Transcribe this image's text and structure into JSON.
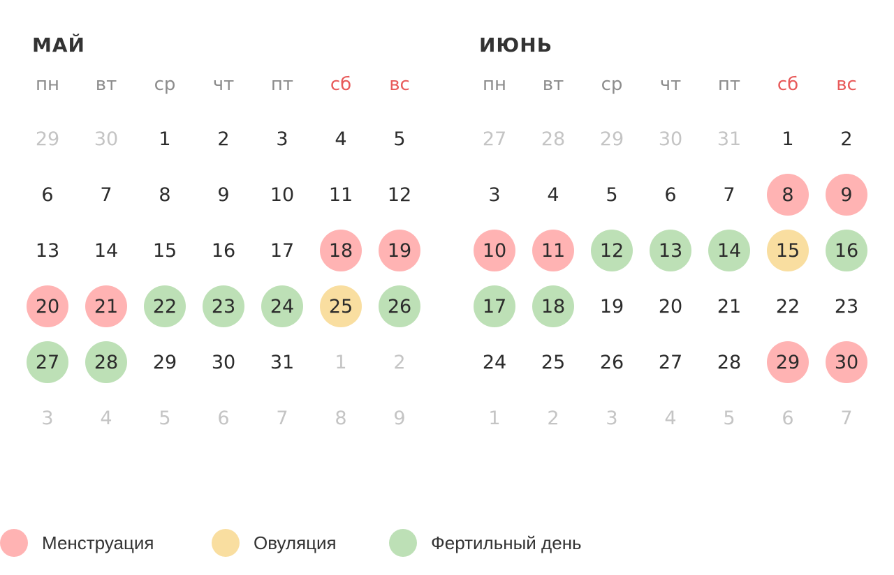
{
  "colors": {
    "menstruation": "#ffb3b3",
    "ovulation": "#f9dea0",
    "fertile": "#bde0b6"
  },
  "weekdays": [
    "пн",
    "вт",
    "ср",
    "чт",
    "пт",
    "сб",
    "вс"
  ],
  "months": [
    {
      "title": "МАЙ",
      "weeks": [
        [
          {
            "d": "29",
            "o": 1
          },
          {
            "d": "30",
            "o": 1
          },
          {
            "d": "1"
          },
          {
            "d": "2"
          },
          {
            "d": "3"
          },
          {
            "d": "4"
          },
          {
            "d": "5"
          }
        ],
        [
          {
            "d": "6"
          },
          {
            "d": "7"
          },
          {
            "d": "8"
          },
          {
            "d": "9"
          },
          {
            "d": "10"
          },
          {
            "d": "11"
          },
          {
            "d": "12"
          }
        ],
        [
          {
            "d": "13"
          },
          {
            "d": "14"
          },
          {
            "d": "15"
          },
          {
            "d": "16"
          },
          {
            "d": "17"
          },
          {
            "d": "18",
            "t": "menstruation"
          },
          {
            "d": "19",
            "t": "menstruation"
          }
        ],
        [
          {
            "d": "20",
            "t": "menstruation"
          },
          {
            "d": "21",
            "t": "menstruation"
          },
          {
            "d": "22",
            "t": "fertile"
          },
          {
            "d": "23",
            "t": "fertile"
          },
          {
            "d": "24",
            "t": "fertile"
          },
          {
            "d": "25",
            "t": "ovulation"
          },
          {
            "d": "26",
            "t": "fertile"
          }
        ],
        [
          {
            "d": "27",
            "t": "fertile"
          },
          {
            "d": "28",
            "t": "fertile"
          },
          {
            "d": "29"
          },
          {
            "d": "30"
          },
          {
            "d": "31"
          },
          {
            "d": "1",
            "o": 1
          },
          {
            "d": "2",
            "o": 1
          }
        ],
        [
          {
            "d": "3",
            "o": 1
          },
          {
            "d": "4",
            "o": 1
          },
          {
            "d": "5",
            "o": 1
          },
          {
            "d": "6",
            "o": 1
          },
          {
            "d": "7",
            "o": 1
          },
          {
            "d": "8",
            "o": 1
          },
          {
            "d": "9",
            "o": 1
          }
        ]
      ]
    },
    {
      "title": "ИЮНЬ",
      "weeks": [
        [
          {
            "d": "27",
            "o": 1
          },
          {
            "d": "28",
            "o": 1
          },
          {
            "d": "29",
            "o": 1
          },
          {
            "d": "30",
            "o": 1
          },
          {
            "d": "31",
            "o": 1
          },
          {
            "d": "1"
          },
          {
            "d": "2"
          }
        ],
        [
          {
            "d": "3"
          },
          {
            "d": "4"
          },
          {
            "d": "5"
          },
          {
            "d": "6"
          },
          {
            "d": "7"
          },
          {
            "d": "8",
            "t": "menstruation"
          },
          {
            "d": "9",
            "t": "menstruation"
          }
        ],
        [
          {
            "d": "10",
            "t": "menstruation"
          },
          {
            "d": "11",
            "t": "menstruation"
          },
          {
            "d": "12",
            "t": "fertile"
          },
          {
            "d": "13",
            "t": "fertile"
          },
          {
            "d": "14",
            "t": "fertile"
          },
          {
            "d": "15",
            "t": "ovulation"
          },
          {
            "d": "16",
            "t": "fertile"
          }
        ],
        [
          {
            "d": "17",
            "t": "fertile"
          },
          {
            "d": "18",
            "t": "fertile"
          },
          {
            "d": "19"
          },
          {
            "d": "20"
          },
          {
            "d": "21"
          },
          {
            "d": "22"
          },
          {
            "d": "23"
          }
        ],
        [
          {
            "d": "24"
          },
          {
            "d": "25"
          },
          {
            "d": "26"
          },
          {
            "d": "27"
          },
          {
            "d": "28"
          },
          {
            "d": "29",
            "t": "menstruation"
          },
          {
            "d": "30",
            "t": "menstruation"
          }
        ],
        [
          {
            "d": "1",
            "o": 1
          },
          {
            "d": "2",
            "o": 1
          },
          {
            "d": "3",
            "o": 1
          },
          {
            "d": "4",
            "o": 1
          },
          {
            "d": "5",
            "o": 1
          },
          {
            "d": "6",
            "o": 1
          },
          {
            "d": "7",
            "o": 1
          }
        ]
      ]
    }
  ],
  "legend": [
    {
      "key": "menstruation",
      "label": "Менструация"
    },
    {
      "key": "ovulation",
      "label": "Овуляция"
    },
    {
      "key": "fertile",
      "label": "Фертильный день"
    }
  ]
}
